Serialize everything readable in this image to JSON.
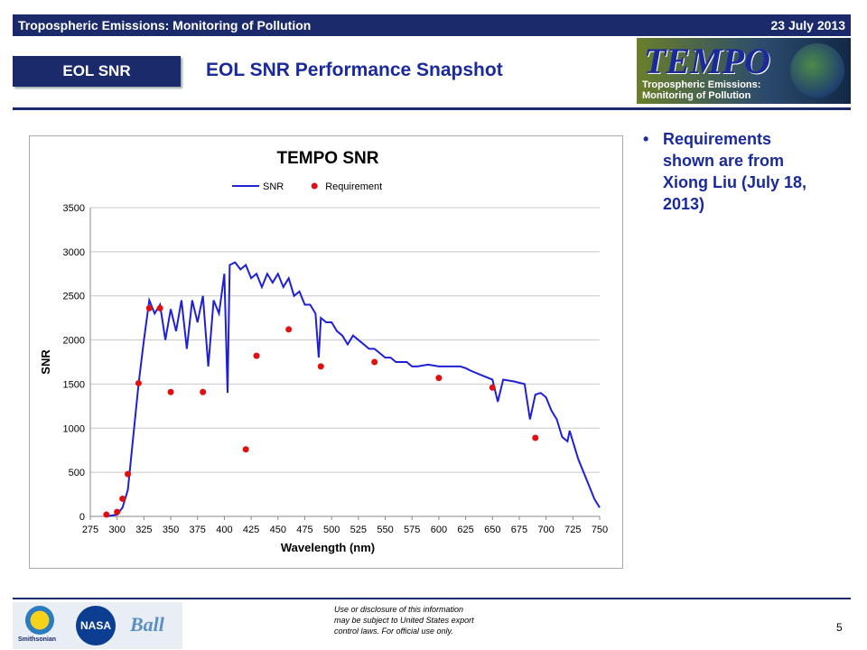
{
  "header": {
    "left": "Tropospheric Emissions: Monitoring of Pollution",
    "right": "23 July 2013"
  },
  "section_tag": "EOL SNR",
  "title": "EOL SNR Performance Snapshot",
  "logo": {
    "wordmark": "TEMPO",
    "tagline": [
      "Tropospheric Emissions:",
      "Monitoring of Pollution"
    ]
  },
  "bullets": [
    "Requirements shown are from Xiong Liu (July 18, 2013)"
  ],
  "footer": {
    "logos": [
      "Smithsonian",
      "NASA",
      "Ball"
    ],
    "disclaimer": [
      "Use or disclosure of this information",
      "may be subject to United States export",
      "control laws. For official use only."
    ],
    "page": "5"
  },
  "chart_data": {
    "type": "line",
    "title": "TEMPO SNR",
    "x_label": "Wavelength (nm)",
    "y_label": "SNR",
    "xlim": [
      275,
      750
    ],
    "ylim": [
      0,
      3500
    ],
    "xticks": [
      275,
      300,
      325,
      350,
      375,
      400,
      425,
      450,
      475,
      500,
      525,
      550,
      575,
      600,
      625,
      650,
      675,
      700,
      725,
      750
    ],
    "yticks": [
      0,
      500,
      1000,
      1500,
      2000,
      2500,
      3000,
      3500
    ],
    "grid": true,
    "legend": "top",
    "series": [
      {
        "name": "SNR",
        "type": "line",
        "color": "#1f1fd6",
        "x": [
          290,
          300,
          305,
          310,
          315,
          320,
          325,
          330,
          335,
          340,
          345,
          350,
          355,
          360,
          365,
          370,
          375,
          380,
          385,
          390,
          395,
          400,
          403,
          405,
          410,
          415,
          420,
          425,
          430,
          435,
          440,
          445,
          450,
          455,
          460,
          465,
          470,
          475,
          480,
          485,
          488,
          490,
          495,
          500,
          505,
          510,
          515,
          520,
          525,
          530,
          535,
          540,
          545,
          550,
          555,
          560,
          570,
          575,
          580,
          590,
          600,
          610,
          620,
          625,
          630,
          640,
          650,
          655,
          660,
          670,
          680,
          685,
          690,
          695,
          700,
          705,
          710,
          715,
          720,
          722,
          725,
          730,
          735,
          740,
          745,
          750
        ],
        "values": [
          0,
          20,
          100,
          300,
          900,
          1500,
          2000,
          2450,
          2300,
          2400,
          2000,
          2350,
          2100,
          2450,
          1900,
          2450,
          2200,
          2500,
          1700,
          2450,
          2300,
          2750,
          1400,
          2850,
          2880,
          2800,
          2850,
          2700,
          2750,
          2600,
          2750,
          2650,
          2750,
          2600,
          2700,
          2500,
          2550,
          2400,
          2400,
          2300,
          1800,
          2250,
          2200,
          2200,
          2100,
          2050,
          1950,
          2050,
          2000,
          1950,
          1900,
          1900,
          1850,
          1800,
          1800,
          1750,
          1750,
          1700,
          1700,
          1720,
          1700,
          1700,
          1700,
          1680,
          1650,
          1600,
          1550,
          1300,
          1550,
          1530,
          1500,
          1100,
          1380,
          1400,
          1350,
          1200,
          1100,
          900,
          850,
          970,
          850,
          650,
          500,
          350,
          200,
          100
        ]
      },
      {
        "name": "Requirement",
        "type": "scatter",
        "color": "#e01010",
        "x": [
          290,
          300,
          305,
          310,
          320,
          330,
          340,
          350,
          380,
          420,
          430,
          460,
          490,
          540,
          600,
          650,
          690
        ],
        "values": [
          20,
          50,
          200,
          480,
          1510,
          2360,
          2360,
          1410,
          1410,
          760,
          1820,
          2120,
          1700,
          1750,
          1570,
          1460,
          890
        ]
      }
    ]
  }
}
